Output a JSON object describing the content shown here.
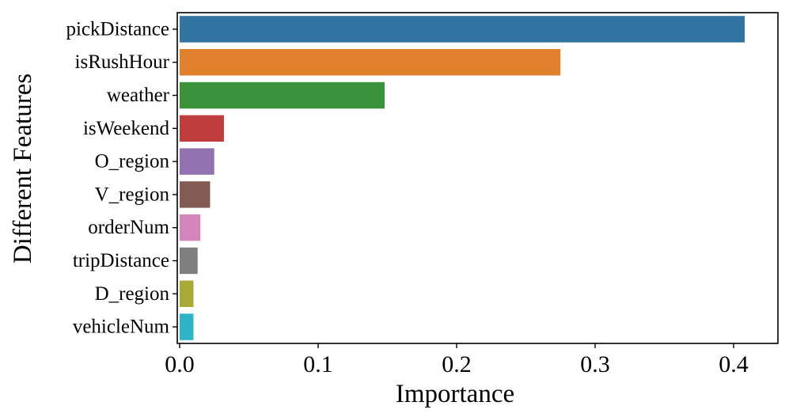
{
  "chart_data": {
    "type": "bar",
    "orientation": "horizontal",
    "title": "",
    "xlabel": "Importance",
    "ylabel": "Different Features",
    "xlim": [
      0.0,
      0.43
    ],
    "xticks": [
      0.0,
      0.1,
      0.2,
      0.3,
      0.4
    ],
    "xtick_labels": [
      "0.0",
      "0.1",
      "0.2",
      "0.3",
      "0.4"
    ],
    "grid": false,
    "legend": "none",
    "categories": [
      "pickDistance",
      "isRushHour",
      "weather",
      "isWeekend",
      "O_region",
      "V_region",
      "orderNum",
      "tripDistance",
      "D_region",
      "vehicleNum"
    ],
    "values": [
      0.408,
      0.275,
      0.148,
      0.032,
      0.025,
      0.022,
      0.015,
      0.013,
      0.01,
      0.01
    ],
    "colors": [
      "#3274a1",
      "#e1812c",
      "#3a923a",
      "#c03d3e",
      "#9372b2",
      "#845b53",
      "#d684bd",
      "#7f7f7f",
      "#a9aa35",
      "#2eb4c6"
    ]
  }
}
